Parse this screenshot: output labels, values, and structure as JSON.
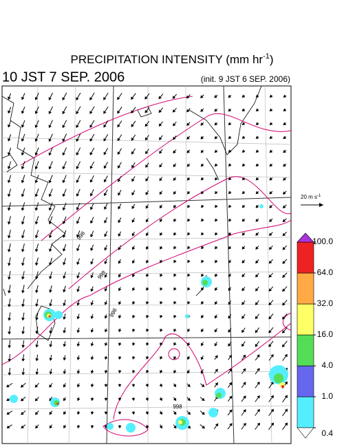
{
  "header": {
    "title": "PRECIPITATION INTENSITY (mm hr",
    "title_superscript": "-1",
    "title_close": ")",
    "valid_time": "10 JST 7 SEP. 2006",
    "init_time": "(init. 9 JST 6 SEP. 2006)"
  },
  "wind_scale": {
    "label": "20 m s",
    "superscript": "-1"
  },
  "colorbar": {
    "levels": [
      {
        "value": 0.4,
        "label": "0.4"
      },
      {
        "value": 1,
        "label": "1.0"
      },
      {
        "value": 4,
        "label": "4.0"
      },
      {
        "value": 16,
        "label": "16.0"
      },
      {
        "value": 32,
        "label": "32.0"
      },
      {
        "value": 64,
        "label": "64.0"
      },
      {
        "value": 100,
        "label": "100.0"
      }
    ],
    "colors": [
      "#55eeff",
      "#6666ee",
      "#55dd55",
      "#ffff66",
      "#ffaa44",
      "#ee2222"
    ],
    "over_color": "#aa33dd",
    "under_color": "#ffffff"
  },
  "contour_labels": [
    "998",
    "998",
    "998",
    "998"
  ]
}
